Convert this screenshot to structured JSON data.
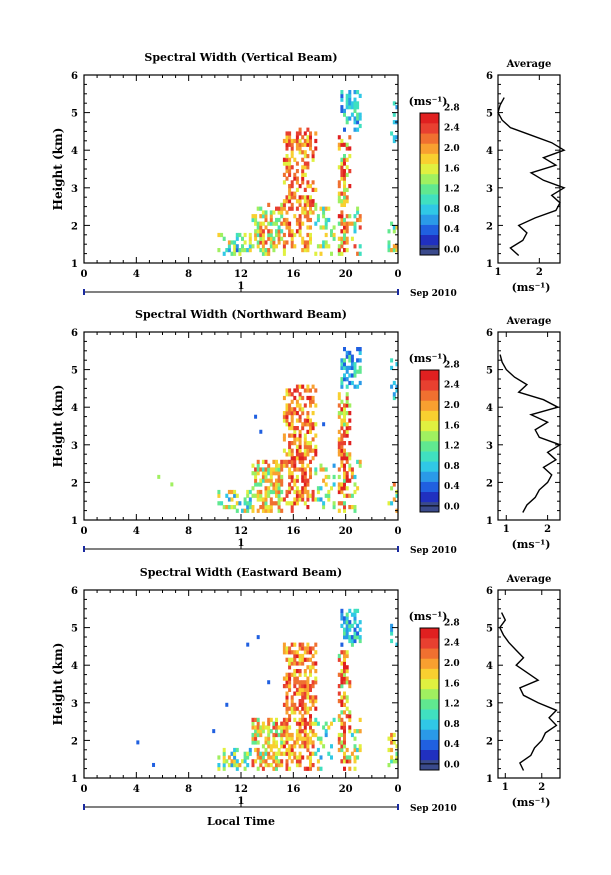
{
  "chart_data": {
    "type": "heatmap",
    "shared": {
      "xticks": [
        "0",
        "4",
        "8",
        "12",
        "16",
        "20",
        "0"
      ],
      "xlim": [
        0,
        24
      ],
      "ylim": [
        1,
        6
      ],
      "yticks": [
        "1",
        "2",
        "3",
        "4",
        "5",
        "6"
      ],
      "date_day": "1",
      "date_label": "Sep 2010",
      "ylabel": "Height (km)",
      "xlabel": "Local Time",
      "colorbar_unit": "(ms⁻¹)",
      "colorbar_ticks": [
        "0.0",
        "0.4",
        "0.8",
        "1.2",
        "1.6",
        "2.0",
        "2.4",
        "2.8"
      ],
      "colorbar_range": [
        0,
        3.0
      ],
      "avg_title": "Average",
      "avg_xlabel": "(ms⁻¹)",
      "colormap": [
        "#3a4a8c",
        "#2030c0",
        "#2060e0",
        "#2a9ae8",
        "#30c8e6",
        "#40e0c0",
        "#60e890",
        "#a0f060",
        "#e0f040",
        "#f8d030",
        "#f8a030",
        "#f07030",
        "#e84030",
        "#e02020"
      ]
    },
    "panels": [
      {
        "title": "Spectral Width (Vertical Beam)",
        "avg_xlim": [
          1,
          2.5
        ],
        "avg_xticks": [
          "1",
          "2"
        ],
        "avg_profile": [
          [
            1.5,
            1.2
          ],
          [
            1.3,
            1.4
          ],
          [
            1.6,
            1.6
          ],
          [
            1.7,
            1.8
          ],
          [
            1.5,
            2.0
          ],
          [
            1.9,
            2.2
          ],
          [
            2.4,
            2.4
          ],
          [
            2.5,
            2.6
          ],
          [
            2.3,
            2.8
          ],
          [
            2.6,
            3.0
          ],
          [
            2.1,
            3.2
          ],
          [
            1.8,
            3.4
          ],
          [
            2.4,
            3.6
          ],
          [
            2.1,
            3.8
          ],
          [
            2.6,
            4.0
          ],
          [
            2.3,
            4.2
          ],
          [
            1.8,
            4.4
          ],
          [
            1.3,
            4.6
          ],
          [
            1.1,
            4.8
          ],
          [
            1.0,
            5.0
          ],
          [
            1.05,
            5.2
          ],
          [
            1.15,
            5.4
          ]
        ]
      },
      {
        "title": "Spectral Width (Northward Beam)",
        "avg_xlim": [
          0.8,
          2.3
        ],
        "avg_xticks": [
          "1",
          "2"
        ],
        "avg_profile": [
          [
            1.4,
            1.2
          ],
          [
            1.5,
            1.4
          ],
          [
            1.7,
            1.6
          ],
          [
            1.8,
            1.8
          ],
          [
            2.0,
            2.0
          ],
          [
            2.1,
            2.2
          ],
          [
            1.9,
            2.4
          ],
          [
            2.2,
            2.6
          ],
          [
            2.0,
            2.8
          ],
          [
            2.3,
            3.0
          ],
          [
            1.8,
            3.2
          ],
          [
            1.7,
            3.4
          ],
          [
            2.0,
            3.6
          ],
          [
            1.6,
            3.8
          ],
          [
            2.25,
            4.0
          ],
          [
            1.9,
            4.2
          ],
          [
            1.3,
            4.4
          ],
          [
            1.5,
            4.6
          ],
          [
            1.2,
            4.8
          ],
          [
            1.0,
            5.0
          ],
          [
            0.9,
            5.2
          ],
          [
            0.85,
            5.4
          ]
        ]
      },
      {
        "title": "Spectral Width (Eastward Beam)",
        "avg_xlim": [
          0.8,
          2.5
        ],
        "avg_xticks": [
          "1",
          "2"
        ],
        "avg_profile": [
          [
            1.5,
            1.2
          ],
          [
            1.4,
            1.4
          ],
          [
            1.7,
            1.6
          ],
          [
            1.8,
            1.8
          ],
          [
            2.0,
            2.0
          ],
          [
            2.1,
            2.2
          ],
          [
            2.4,
            2.4
          ],
          [
            2.2,
            2.6
          ],
          [
            2.4,
            2.8
          ],
          [
            1.9,
            3.0
          ],
          [
            1.5,
            3.2
          ],
          [
            1.4,
            3.4
          ],
          [
            1.9,
            3.6
          ],
          [
            1.6,
            3.8
          ],
          [
            1.3,
            4.0
          ],
          [
            1.5,
            4.2
          ],
          [
            1.3,
            4.4
          ],
          [
            1.1,
            4.6
          ],
          [
            0.95,
            4.8
          ],
          [
            0.85,
            5.0
          ],
          [
            1.0,
            5.2
          ],
          [
            0.9,
            5.4
          ]
        ]
      }
    ]
  }
}
